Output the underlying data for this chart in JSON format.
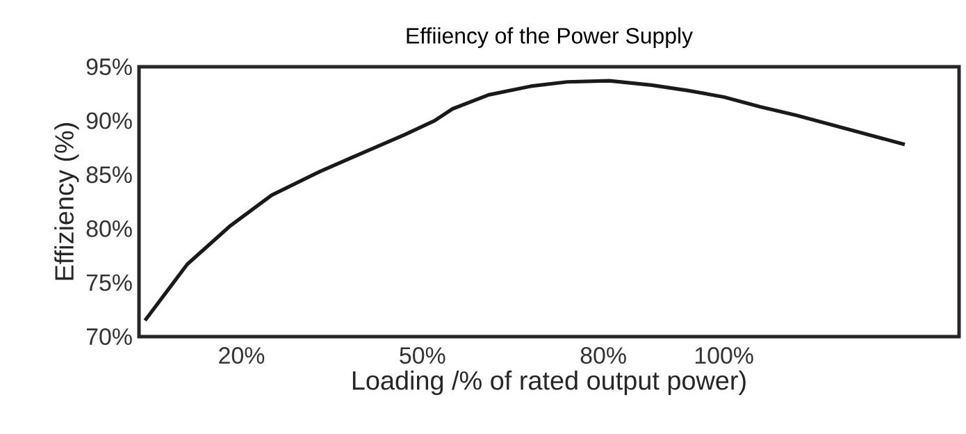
{
  "chart_data": {
    "type": "line",
    "title": "Effiiency of the Power Supply",
    "xlabel": "Loading /% of rated output power)",
    "ylabel": "Effiziency (%)",
    "x": [
      4,
      11,
      18,
      25,
      33,
      40,
      47,
      52,
      55,
      61,
      68,
      74,
      81,
      88,
      94,
      100,
      106,
      112,
      118,
      124,
      130
    ],
    "series": [
      {
        "color": "#1a1a1a",
        "values": [
          71.5,
          76.7,
          80.2,
          83.1,
          85.3,
          87.0,
          88.7,
          90.0,
          91.1,
          92.4,
          93.2,
          93.6,
          93.7,
          93.3,
          92.8,
          92.2,
          91.3,
          90.5,
          89.6,
          88.7,
          87.8
        ]
      }
    ],
    "xlim": [
      3,
      139
    ],
    "ylim": [
      70,
      95
    ],
    "xticks": [
      {
        "value": 20,
        "label": "20%"
      },
      {
        "value": 50,
        "label": "50%"
      },
      {
        "value": 80,
        "label": "80%"
      },
      {
        "value": 100,
        "label": "100%"
      }
    ],
    "yticks": [
      {
        "value": 70,
        "label": "70%"
      },
      {
        "value": 75,
        "label": "75%"
      },
      {
        "value": 80,
        "label": "80%"
      },
      {
        "value": 85,
        "label": "85%"
      },
      {
        "value": 90,
        "label": "90%"
      },
      {
        "value": 95,
        "label": "95%"
      }
    ],
    "grid": false,
    "marker": "none",
    "line_style": "solid"
  }
}
